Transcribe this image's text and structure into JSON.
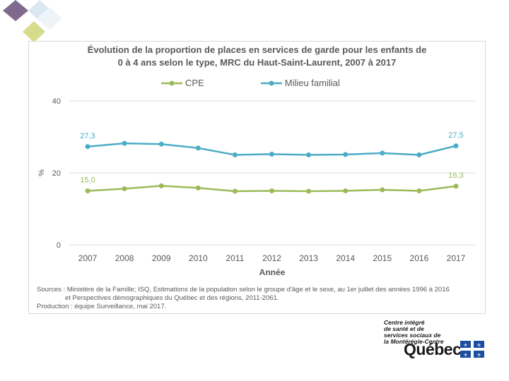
{
  "chart_data": {
    "type": "line",
    "title_line1": "Évolution de la proportion de places en services de garde pour les enfants de",
    "title_line2": "0 à 4 ans selon le type, MRC du Haut-Saint-Laurent, 2007 à 2017",
    "xlabel": "Année",
    "ylabel": "%",
    "ylim": [
      0,
      40
    ],
    "yticks": [
      "0",
      "20",
      "40"
    ],
    "categories": [
      "2007",
      "2008",
      "2009",
      "2010",
      "2011",
      "2012",
      "2013",
      "2014",
      "2015",
      "2016",
      "2017"
    ],
    "series": [
      {
        "name": "CPE",
        "color": "#9bbb59",
        "values": [
          15.0,
          15.6,
          16.4,
          15.8,
          14.9,
          15.0,
          14.9,
          15.0,
          15.3,
          15.0,
          16.3
        ],
        "labels": [
          {
            "index": 0,
            "text": "15,0"
          },
          {
            "index": 10,
            "text": "16,3"
          }
        ]
      },
      {
        "name": "Milieu familial",
        "color": "#4bacc6",
        "values": [
          27.3,
          28.2,
          28.0,
          26.9,
          25.0,
          25.2,
          25.0,
          25.1,
          25.5,
          25.0,
          27.5
        ],
        "labels": [
          {
            "index": 0,
            "text": "27,3"
          },
          {
            "index": 10,
            "text": "27,5"
          }
        ]
      }
    ],
    "grid": true
  },
  "sources": {
    "line1": "Sources : Ministère de la Famille; ISQ, Estimations de la population selon le groupe d'âge et le sexe, au 1er juillet des années 1996 à 2016",
    "line2": "et Perspectives démographiques du Québec et des régions, 2011-2061.",
    "production": "Production : équipe Surveillance, mai 2017."
  },
  "logo": {
    "line1": "Centre intégré",
    "line2": "de santé et de",
    "line3": "services sociaux de",
    "line4": "la Montérégie-Centre",
    "wordmark": "Québec"
  },
  "colors": {
    "deco_purple": "#7f6a8e",
    "deco_lightblue": "#dbe7f1",
    "deco_yellow": "#d6dc8c",
    "grid": "#d9d9d9",
    "text": "#595959"
  }
}
